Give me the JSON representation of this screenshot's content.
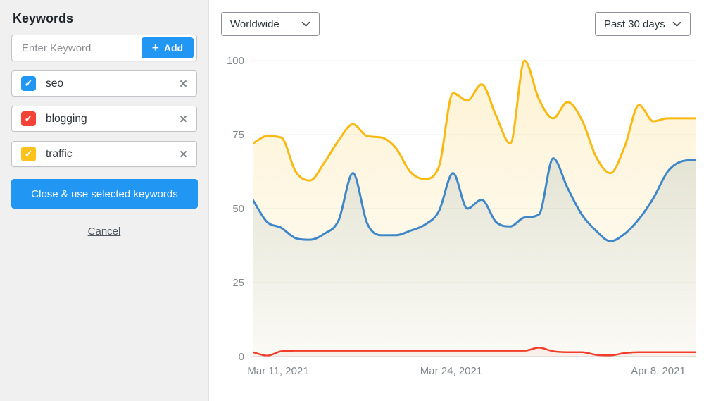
{
  "sidebar": {
    "title": "Keywords",
    "add_input": {
      "placeholder": "Enter Keyword",
      "plus_icon": "+",
      "add_button": "Add"
    },
    "check_icon": "✓",
    "remove_icon": "✕",
    "keywords": [
      {
        "label": "seo",
        "checked": true,
        "color": "#2196f3"
      },
      {
        "label": "blogging",
        "checked": true,
        "color": "#f44336"
      },
      {
        "label": "traffic",
        "checked": true,
        "color": "#fcc21b"
      }
    ],
    "use_button": "Close & use selected keywords",
    "cancel_link": "Cancel"
  },
  "toolbar": {
    "region_select": {
      "value": "Worldwide"
    },
    "range_select": {
      "value": "Past 30 days"
    }
  },
  "colors": {
    "accent_blue": "#2196f3",
    "panel_bg": "#f0f0f1",
    "axis_text": "#80868b",
    "gridline": "#eef0f2",
    "baseline": "#c9ced3"
  },
  "chart_data": {
    "type": "area",
    "title": "",
    "grid": true,
    "legend_position": "none",
    "y_axis": {
      "range": [
        0,
        100
      ],
      "ticks": [
        0,
        25,
        50,
        75,
        100
      ]
    },
    "x_axis": {
      "ticks": [
        {
          "label": "Mar 11, 2021",
          "pos": 0.057
        },
        {
          "label": "Mar 24, 2021",
          "pos": 0.448
        },
        {
          "label": "Apr 8, 2021",
          "pos": 0.914
        }
      ]
    },
    "series": [
      {
        "name": "traffic",
        "color": "#f8ba12",
        "values": [
          72,
          74.5,
          74,
          62.5,
          59.5,
          65.5,
          73,
          78.5,
          74.5,
          74,
          70.5,
          62.5,
          60,
          64,
          89,
          86.5,
          92,
          81.5,
          72,
          100,
          87,
          80.5,
          86,
          80,
          67.5,
          62,
          71,
          85,
          79.5,
          80.5,
          80.5,
          80.5
        ]
      },
      {
        "name": "seo",
        "color": "#4087c8",
        "values": [
          53,
          45.5,
          43.5,
          40,
          39.5,
          41.5,
          46,
          62,
          45,
          41,
          41,
          42.5,
          44.5,
          49,
          62,
          50,
          53,
          45.5,
          44,
          47,
          48,
          67,
          57,
          48,
          42.5,
          39,
          41.5,
          46.5,
          53.5,
          62.5,
          66,
          66.5
        ]
      },
      {
        "name": "blogging",
        "color": "#f23d2a",
        "values": [
          1.5,
          0.3,
          1.8,
          2,
          2,
          2,
          2,
          2,
          2,
          2,
          2,
          2,
          2,
          2,
          2,
          2,
          2,
          2,
          2,
          2,
          3,
          1.8,
          1.5,
          1.5,
          0.6,
          0.4,
          1.2,
          1.5,
          1.5,
          1.5,
          1.5,
          1.5
        ]
      }
    ]
  }
}
